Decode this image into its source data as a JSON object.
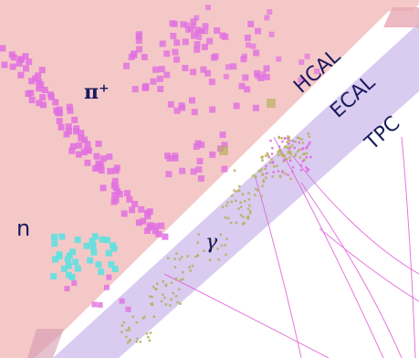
{
  "labels": {
    "pion": "π⁺",
    "neutron": "n",
    "photon": "γ",
    "hcal": "HCAL",
    "ecal": "ECAL",
    "tpc": "TPC"
  },
  "colors": {
    "hcal_region": "#f5c8c8",
    "ecal_band": "#d9ccf0",
    "tpc_region": "#ffffff",
    "pion_hits": "#e070e0",
    "neutron_hits": "#5fe0e0",
    "photon_hits": "#b8b060",
    "tracks": "#e060d8",
    "label_text": "#1a1a5e"
  }
}
